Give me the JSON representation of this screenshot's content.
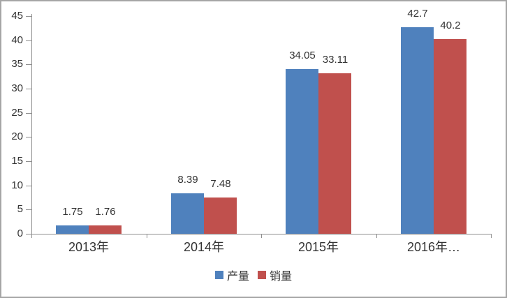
{
  "chart_data": {
    "type": "bar",
    "title": "",
    "xlabel": "",
    "ylabel": "",
    "categories": [
      "2013年",
      "2014年",
      "2015年",
      "2016年…"
    ],
    "series": [
      {
        "name": "产量",
        "color": "#4f81bd",
        "values": [
          1.75,
          8.39,
          34.05,
          42.7
        ],
        "labels": [
          "1.75",
          "8.39",
          "34.05",
          "42.7"
        ]
      },
      {
        "name": "销量",
        "color": "#c0504d",
        "values": [
          1.76,
          7.48,
          33.11,
          40.2
        ],
        "labels": [
          "1.76",
          "7.48",
          "33.11",
          "40.2"
        ]
      }
    ],
    "ylim": [
      0,
      45
    ],
    "ytick_step": 5,
    "yticks": [
      0,
      5,
      10,
      15,
      20,
      25,
      30,
      35,
      40,
      45
    ],
    "grid": false,
    "data_labels": true,
    "legend_position": "bottom"
  },
  "colors": {
    "series_blue": "#4f81bd",
    "series_red": "#c0504d",
    "axis": "#8f8f8f",
    "text": "#333333",
    "frame_border": "#a6a6a6",
    "background": "#ffffff"
  }
}
